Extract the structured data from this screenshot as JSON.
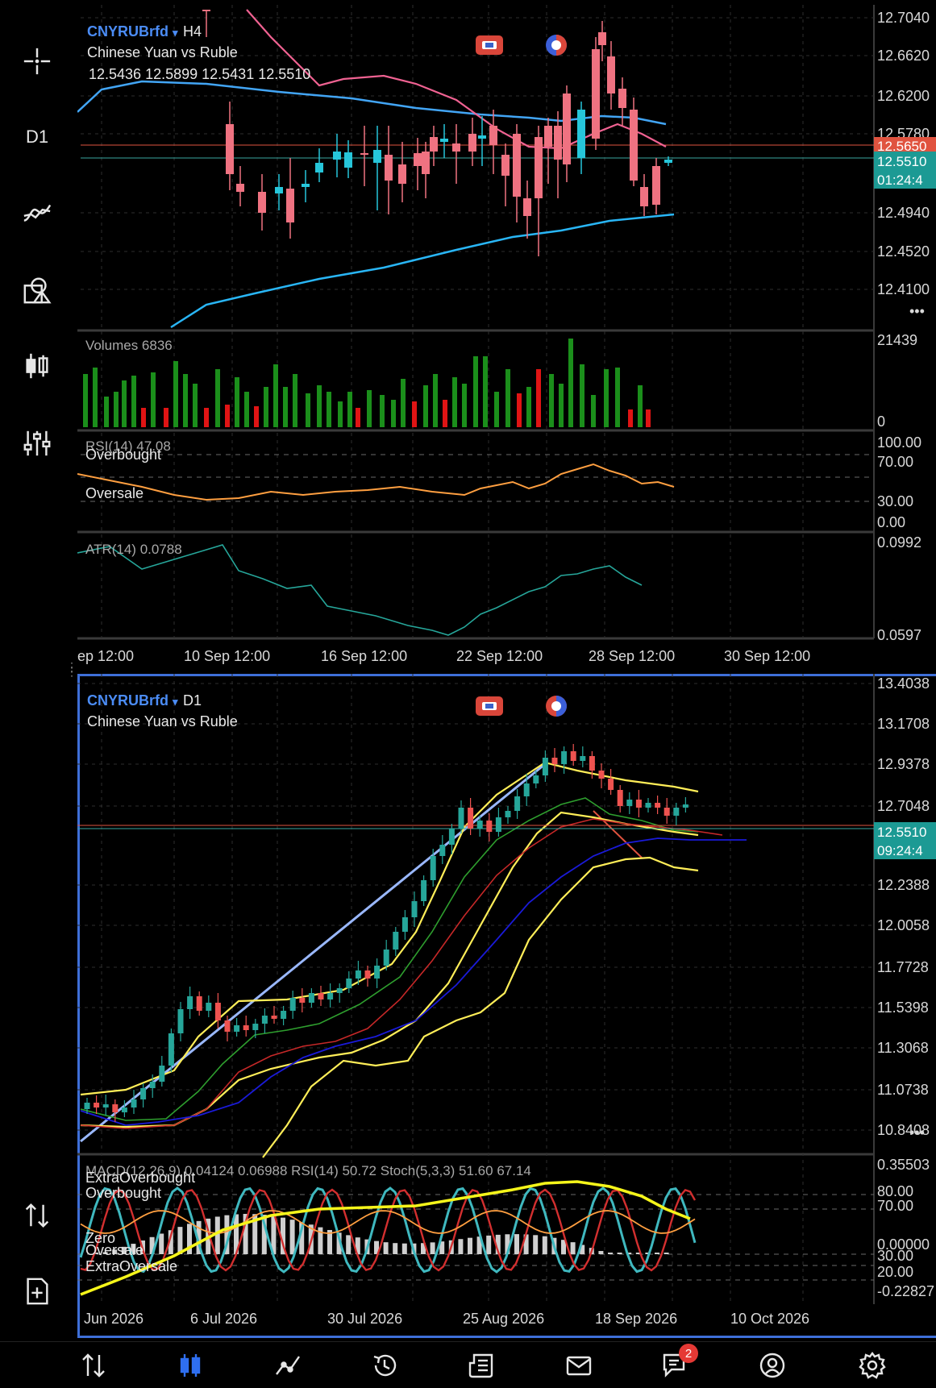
{
  "sidebar": {
    "timeframe_label": "D1",
    "items": [
      {
        "name": "crosshair",
        "icon": "crosshair-icon"
      },
      {
        "name": "timeframe",
        "icon": "timeframe-icon"
      },
      {
        "name": "indicators",
        "icon": "indicators-icon"
      },
      {
        "name": "objects",
        "icon": "objects-icon"
      },
      {
        "name": "chart-type",
        "icon": "candlestick-icon"
      },
      {
        "name": "settings",
        "icon": "sliders-icon"
      },
      {
        "name": "trade",
        "icon": "trade-arrows-icon"
      },
      {
        "name": "new-order",
        "icon": "new-document-icon"
      }
    ]
  },
  "chart_h4": {
    "symbol": "CNYRUBrfd",
    "timeframe": "H4",
    "dropdown_glyph": "▾",
    "description": "Chinese Yuan vs Ruble",
    "ohlc": "12.5436 12.5899 12.5431 12.5510",
    "price_axis": [
      "12.7040",
      "12.6620",
      "12.6200",
      "12.5780",
      "12.4940",
      "12.4520",
      "12.4100"
    ],
    "bid_tag": "12.5650",
    "last_tag": "12.5510",
    "countdown": "01:24:4",
    "volumes_label": "Volumes 6836",
    "volumes_axis_max": "21439",
    "volumes_axis_min": "0",
    "rsi_label": "RSI(14) 47.08",
    "rsi_overbought": "Overbought",
    "rsi_oversale": "Oversale",
    "rsi_axis": [
      "100.00",
      "70.00",
      "30.00",
      "0.00"
    ],
    "atr_label": "ATR(14) 0.0788",
    "atr_axis": [
      "0.0992",
      "0.0597"
    ],
    "time_axis": [
      "ep 12:00",
      "10 Sep 12:00",
      "16 Sep 12:00",
      "22 Sep 12:00",
      "28 Sep 12:00",
      "30 Sep 12:00"
    ],
    "colors": {
      "bull": "#26c6da",
      "bear": "#ef7281",
      "ma_fast": "#f06292",
      "ma_mid": "#42a5f5",
      "ma_slow": "#29b6f6",
      "vol_up": "#1b8f1b",
      "vol_down": "#e01414",
      "rsi": "#ff9f40",
      "atr": "#26a69a"
    }
  },
  "chart_d1": {
    "symbol": "CNYRUBrfd",
    "timeframe": "D1",
    "dropdown_glyph": "▾",
    "description": "Chinese Yuan vs Ruble",
    "price_axis": [
      "13.4038",
      "13.1708",
      "12.9378",
      "12.7048",
      "12.2388",
      "12.0058",
      "11.7728",
      "11.5398",
      "11.3068",
      "11.0738",
      "10.8408"
    ],
    "last_tag": "12.5510",
    "countdown": "09:24:4",
    "sub_label": "MACD(12,26,9) 0.04124 0.06988 RSI(14) 50.72 Stoch(5,3,3) 51.60 67.14",
    "sub_levels": [
      "ExtraOverbought",
      "Overbought",
      "Zero",
      "Oversale",
      "ExtraOversale"
    ],
    "sub_axis": [
      "0.35503",
      "80.00",
      "70.00",
      "0.00000",
      "30.00",
      "20.00",
      "-0.22827"
    ],
    "time_axis": [
      "Jun 2026",
      "6 Jul 2026",
      "30 Jul 2026",
      "25 Aug 2026",
      "18 Sep 2026",
      "10 Oct 2026"
    ],
    "colors": {
      "bull": "#26a69a",
      "bear": "#ef5350",
      "bands": "#ffee58",
      "sma_green": "#2e9e2e",
      "sma_red": "#c62828",
      "sma_blue": "#1a1ad8",
      "trend": "#9ab8ff",
      "macd": "#cfcfcf",
      "stoch_main": "#3fb8bf",
      "stoch_signal": "#d32f2f",
      "rsi": "#ff9f40",
      "rsi_smooth": "#f5f51a"
    }
  },
  "bottom_nav": {
    "items": [
      {
        "name": "quotes",
        "icon": "quotes-arrows-icon"
      },
      {
        "name": "charts",
        "icon": "chart-candles-icon",
        "active": true
      },
      {
        "name": "trade",
        "icon": "trade-line-icon"
      },
      {
        "name": "history",
        "icon": "history-icon"
      },
      {
        "name": "news",
        "icon": "news-icon"
      },
      {
        "name": "mailbox",
        "icon": "mail-icon"
      },
      {
        "name": "messages",
        "icon": "chat-icon",
        "badge": "2"
      },
      {
        "name": "community",
        "icon": "community-icon"
      },
      {
        "name": "settings",
        "icon": "gear-icon"
      }
    ]
  }
}
